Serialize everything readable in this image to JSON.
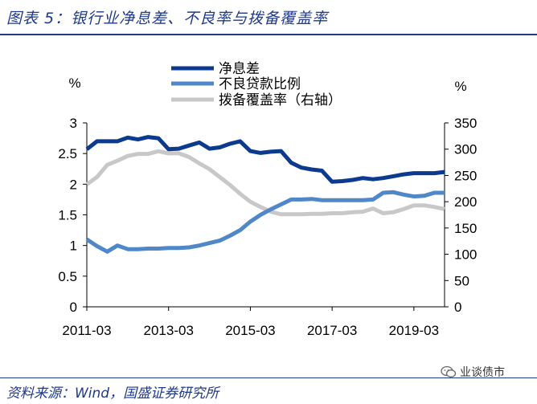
{
  "header": {
    "title": "图表 5：银行业净息差、不良率与拨备覆盖率"
  },
  "footer": {
    "source": "资料来源：Wind，国盛证券研究所"
  },
  "watermark": {
    "text": "业谈债市",
    "icon": "wechat-icon"
  },
  "chart_data": {
    "type": "line",
    "x_tick_labels": [
      "2011-03",
      "2013-03",
      "2015-03",
      "2017-03",
      "2019-03"
    ],
    "left_axis": {
      "unit_label": "%",
      "ylim": [
        0,
        3
      ],
      "ticks": [
        "0",
        "0.5",
        "1",
        "1.5",
        "2",
        "2.5",
        "3"
      ]
    },
    "right_axis": {
      "unit_label": "%",
      "ylim": [
        0,
        350
      ],
      "ticks": [
        "0",
        "50",
        "100",
        "150",
        "200",
        "250",
        "300",
        "350"
      ]
    },
    "legend_position": "top-center",
    "x": [
      "2011-03",
      "2011-06",
      "2011-09",
      "2011-12",
      "2012-03",
      "2012-06",
      "2012-09",
      "2012-12",
      "2013-03",
      "2013-06",
      "2013-09",
      "2013-12",
      "2014-03",
      "2014-06",
      "2014-09",
      "2014-12",
      "2015-03",
      "2015-06",
      "2015-09",
      "2015-12",
      "2016-03",
      "2016-06",
      "2016-09",
      "2016-12",
      "2017-03",
      "2017-06",
      "2017-09",
      "2017-12",
      "2018-03",
      "2018-06",
      "2018-09",
      "2018-12",
      "2019-03",
      "2019-06",
      "2019-09",
      "2019-12"
    ],
    "series": [
      {
        "name": "净息差",
        "axis": "left",
        "color": "#0b3a8f",
        "values": [
          2.57,
          2.7,
          2.7,
          2.7,
          2.76,
          2.73,
          2.77,
          2.75,
          2.57,
          2.58,
          2.63,
          2.68,
          2.58,
          2.6,
          2.66,
          2.7,
          2.54,
          2.51,
          2.53,
          2.54,
          2.35,
          2.27,
          2.24,
          2.22,
          2.04,
          2.05,
          2.07,
          2.1,
          2.08,
          2.1,
          2.13,
          2.16,
          2.18,
          2.18,
          2.18,
          2.2
        ]
      },
      {
        "name": "不良贷款比例",
        "axis": "left",
        "color": "#4f87c9",
        "values": [
          1.1,
          0.99,
          0.9,
          1.0,
          0.94,
          0.94,
          0.95,
          0.95,
          0.96,
          0.96,
          0.97,
          1.0,
          1.04,
          1.08,
          1.16,
          1.25,
          1.39,
          1.5,
          1.59,
          1.67,
          1.75,
          1.75,
          1.76,
          1.74,
          1.74,
          1.74,
          1.74,
          1.74,
          1.75,
          1.86,
          1.87,
          1.83,
          1.8,
          1.81,
          1.86,
          1.86
        ]
      },
      {
        "name": "拨备覆盖率（右轴）",
        "axis": "right",
        "color": "#c8c8c8",
        "values": [
          233,
          247,
          270,
          278,
          287,
          291,
          291,
          296,
          292,
          292,
          285,
          273,
          262,
          247,
          232,
          215,
          200,
          190,
          181,
          176,
          176,
          176,
          177,
          177,
          178,
          178,
          180,
          181,
          187,
          178,
          180,
          186,
          193,
          193,
          190,
          186
        ]
      }
    ]
  }
}
